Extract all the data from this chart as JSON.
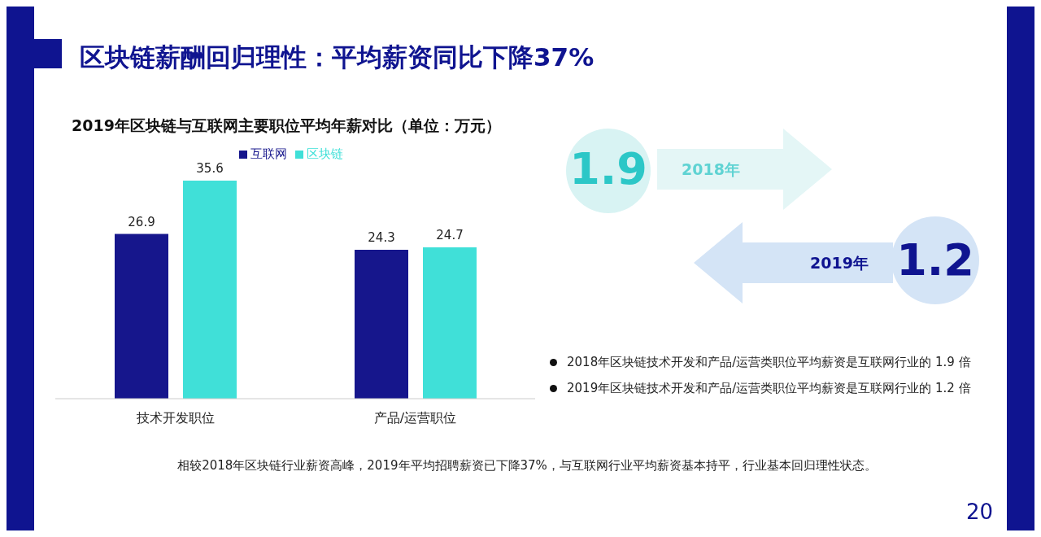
{
  "chart_data": {
    "type": "bar",
    "title": "区块链薪酬回归理性：平均薪资同比下降37%",
    "subtitle": "2019年区块链与互联网主要职位平均年薪对比（单位：万元）",
    "categories": [
      "技术开发职位",
      "产品/运营职位"
    ],
    "series": [
      {
        "name": "互联网",
        "color": "#16168c",
        "values": [
          26.9,
          24.3
        ]
      },
      {
        "name": "区块链",
        "color": "#40e0d8",
        "values": [
          35.6,
          24.7
        ]
      }
    ],
    "data_labels": true,
    "legend": "top",
    "grid": false,
    "annotations": [
      "1.9",
      "2018年",
      "2019年",
      "1.2",
      "2018年区块链技术开发和产品/运营类职位平均薪资是互联网行业的 1.9 倍",
      "2019年区块链技术开发和产品/运营类职位平均薪资是互联网行业的 1.2 倍",
      "相较2018年区块链行业薪资高峰，2019年平均招聘薪资已下降37%，与互联网行业平均薪资基本持平，行业基本回归理性状态。",
      "20"
    ]
  }
}
